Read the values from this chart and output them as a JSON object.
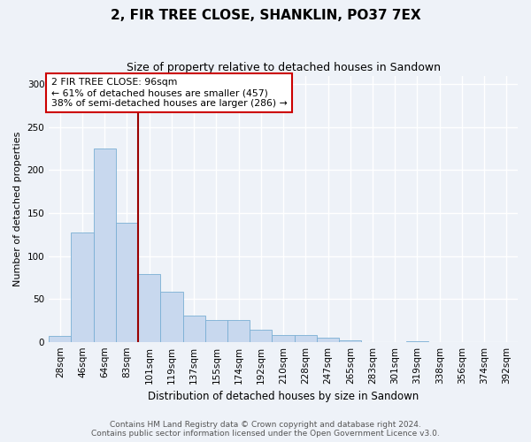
{
  "title": "2, FIR TREE CLOSE, SHANKLIN, PO37 7EX",
  "subtitle": "Size of property relative to detached houses in Sandown",
  "xlabel": "Distribution of detached houses by size in Sandown",
  "ylabel": "Number of detached properties",
  "bar_color": "#c8d8ee",
  "bar_edge_color": "#7aafd4",
  "categories": [
    "28sqm",
    "46sqm",
    "64sqm",
    "83sqm",
    "101sqm",
    "119sqm",
    "137sqm",
    "155sqm",
    "174sqm",
    "192sqm",
    "210sqm",
    "228sqm",
    "247sqm",
    "265sqm",
    "283sqm",
    "301sqm",
    "319sqm",
    "338sqm",
    "356sqm",
    "374sqm",
    "392sqm"
  ],
  "values": [
    7,
    127,
    225,
    139,
    79,
    58,
    31,
    25,
    25,
    14,
    8,
    8,
    5,
    2,
    0,
    0,
    1,
    0,
    0,
    0,
    0
  ],
  "ylim": [
    0,
    310
  ],
  "yticks": [
    0,
    50,
    100,
    150,
    200,
    250,
    300
  ],
  "vline_x_idx": 3.5,
  "vline_color": "#990000",
  "annotation_box_text": "2 FIR TREE CLOSE: 96sqm\n← 61% of detached houses are smaller (457)\n38% of semi-detached houses are larger (286) →",
  "footer_line1": "Contains HM Land Registry data © Crown copyright and database right 2024.",
  "footer_line2": "Contains public sector information licensed under the Open Government Licence v3.0.",
  "background_color": "#eef2f8",
  "plot_bg_color": "#eef2f8",
  "grid_color": "#ffffff",
  "title_fontsize": 11,
  "subtitle_fontsize": 9,
  "ylabel_fontsize": 8,
  "xlabel_fontsize": 8.5,
  "tick_fontsize": 7.5,
  "footer_fontsize": 6.5
}
